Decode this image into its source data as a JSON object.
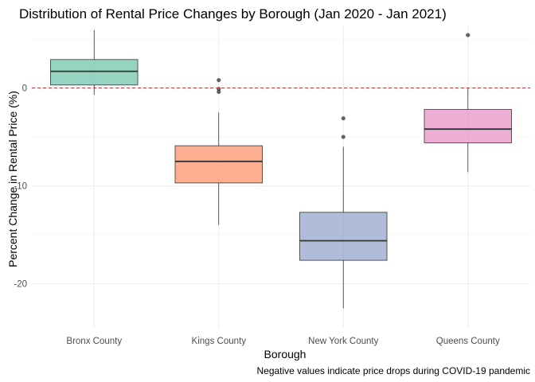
{
  "chart_data": {
    "type": "boxplot",
    "title": "Distribution of Rental Price Changes by Borough (Jan 2020 - Jan 2021)",
    "xlabel": "Borough",
    "ylabel": "Percent Change in Rental Price (%)",
    "caption": "Negative values indicate price drops during COVID-19 pandemic",
    "ylim": [
      -24.5,
      6.3
    ],
    "yticks": [
      0,
      -10,
      -20
    ],
    "ytick_labels": [
      "0",
      "-10",
      "-20"
    ],
    "grid": true,
    "legend": "none",
    "reference_line": {
      "y": 0,
      "style": "dashed",
      "color": "#d1343b"
    },
    "categories": [
      "Bronx County",
      "Kings County",
      "New York County",
      "Queens County"
    ],
    "boxes": [
      {
        "name": "Bronx County",
        "color": "#66c2a5",
        "whisker_low": -0.7,
        "q1": 0.3,
        "median": 1.7,
        "q3": 2.9,
        "whisker_high": 5.9,
        "outliers": []
      },
      {
        "name": "Kings County",
        "color": "#fc8d62",
        "whisker_low": -14.0,
        "q1": -9.7,
        "median": -7.5,
        "q3": -5.9,
        "whisker_high": -2.5,
        "outliers": [
          0.8,
          -0.1,
          -0.4
        ]
      },
      {
        "name": "New York County",
        "color": "#8da0cb",
        "whisker_low": -22.5,
        "q1": -17.6,
        "median": -15.6,
        "q3": -12.7,
        "whisker_high": -6.0,
        "outliers": [
          -3.1,
          -5.0
        ]
      },
      {
        "name": "Queens County",
        "color": "#e78ac3",
        "whisker_low": -8.6,
        "q1": -5.6,
        "median": -4.2,
        "q3": -2.2,
        "whisker_high": 0.0,
        "outliers": [
          5.4
        ]
      }
    ]
  }
}
